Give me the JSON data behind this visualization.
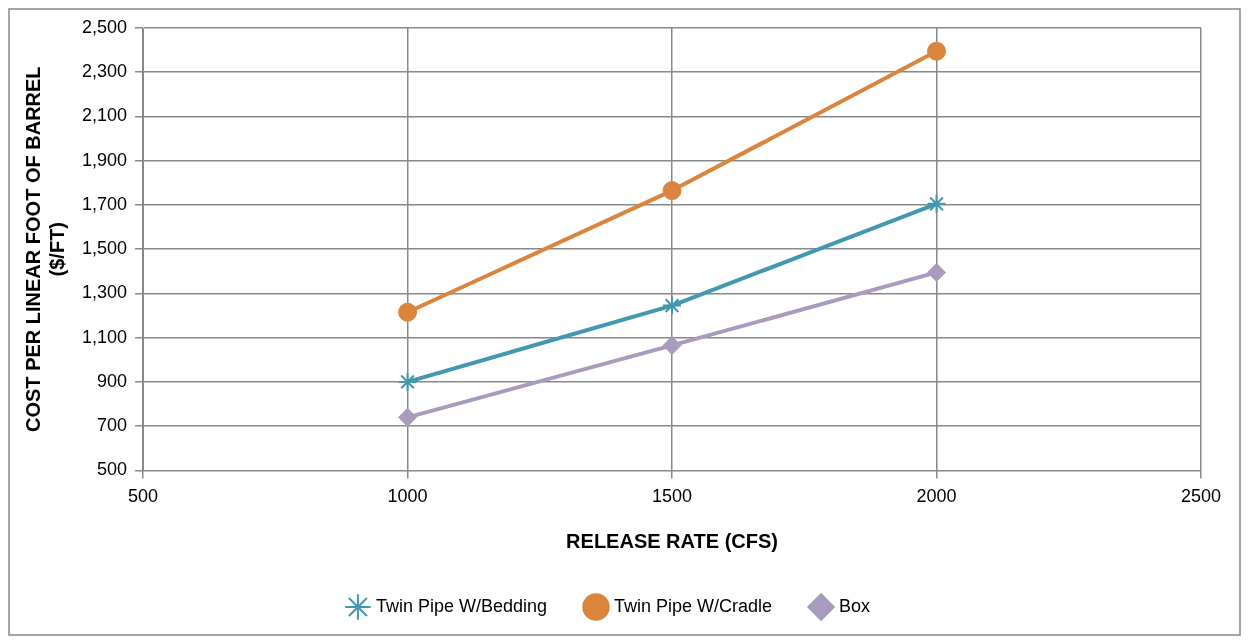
{
  "chart_data": {
    "type": "line",
    "xlabel": "RELEASE RATE (CFS)",
    "ylabel": "COST PER LINEAR FOOT OF BARREL\n($/FT)",
    "x": [
      1000,
      1500,
      2000
    ],
    "series": [
      {
        "name": "Twin Pipe W/Bedding",
        "color": "#4198af",
        "marker": "cross",
        "values": [
          900,
          1245,
          1705
        ]
      },
      {
        "name": "Twin Pipe W/Cradle",
        "color": "#db843d",
        "marker": "circle",
        "values": [
          1215,
          1765,
          2395
        ]
      },
      {
        "name": "Box",
        "color": "#a99bbd",
        "marker": "diamond",
        "values": [
          740,
          1065,
          1395
        ]
      }
    ],
    "xlim": [
      500,
      2500
    ],
    "xticks": [
      500,
      1000,
      1500,
      2000,
      2500
    ],
    "ylim": [
      500,
      2500
    ],
    "yticks": [
      {
        "value": 500,
        "label": "500"
      },
      {
        "value": 700,
        "label": "700"
      },
      {
        "value": 900,
        "label": "900"
      },
      {
        "value": 1100,
        "label": "1,100"
      },
      {
        "value": 1300,
        "label": "1,300"
      },
      {
        "value": 1500,
        "label": "1,500"
      },
      {
        "value": 1700,
        "label": "1,700"
      },
      {
        "value": 1900,
        "label": "1,900"
      },
      {
        "value": 2100,
        "label": "2,100"
      },
      {
        "value": 2300,
        "label": "2,300"
      },
      {
        "value": 2500,
        "label": "2,500"
      }
    ],
    "grid": true,
    "legend": "bottom",
    "line_style": "solid"
  }
}
